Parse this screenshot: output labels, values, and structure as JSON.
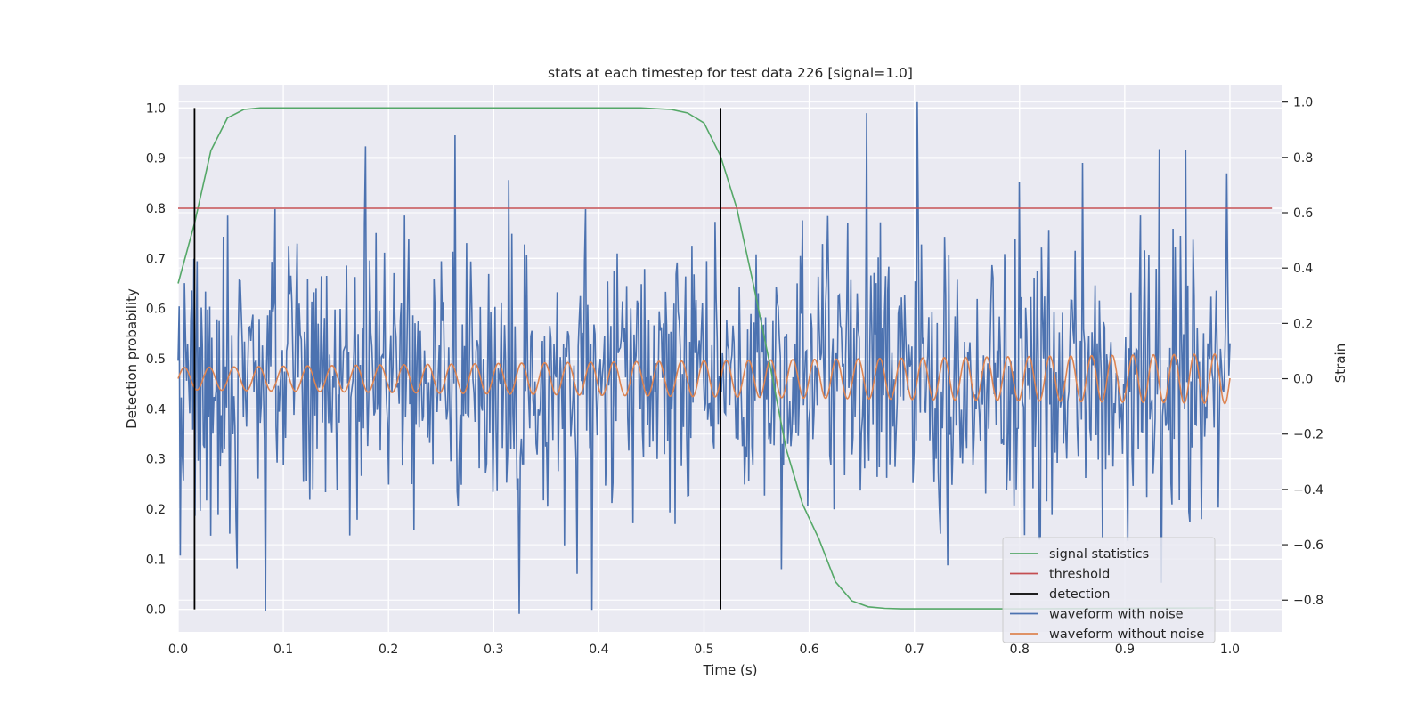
{
  "chart_data": {
    "type": "line",
    "title": "stats at each timestep for test data 226 [signal=1.0]",
    "xlabel": "Time (s)",
    "ylabel": "Detection probability",
    "ylabel_right": "Strain",
    "xlim": [
      0.0,
      1.05
    ],
    "ylim": [
      -0.045,
      1.045
    ],
    "ylim_right": [
      -0.915,
      1.06
    ],
    "xticks": [
      0.0,
      0.1,
      0.2,
      0.3,
      0.4,
      0.5,
      0.6,
      0.7,
      0.8,
      0.9,
      1.0
    ],
    "yticks": [
      0.0,
      0.1,
      0.2,
      0.3,
      0.4,
      0.5,
      0.6,
      0.7,
      0.8,
      0.9,
      1.0
    ],
    "yticks_right": [
      -0.8,
      -0.6,
      -0.4,
      -0.2,
      0.0,
      0.2,
      0.4,
      0.6,
      0.8,
      1.0
    ],
    "xtick_labels": [
      "0.0",
      "0.1",
      "0.2",
      "0.3",
      "0.4",
      "0.5",
      "0.6",
      "0.7",
      "0.8",
      "0.9",
      "1.0"
    ],
    "ytick_labels": [
      "0.0",
      "0.1",
      "0.2",
      "0.3",
      "0.4",
      "0.5",
      "0.6",
      "0.7",
      "0.8",
      "0.9",
      "1.0"
    ],
    "ytick_labels_right": [
      "−0.8",
      "−0.6",
      "−0.4",
      "−0.2",
      "0.0",
      "0.2",
      "0.4",
      "0.6",
      "0.8",
      "1.0"
    ],
    "grid": true,
    "legend_position": "lower-right",
    "series": [
      {
        "name": "signal statistics",
        "axis": "left",
        "color": "#55a868",
        "x": [
          0.0,
          0.0156,
          0.0312,
          0.0468,
          0.0625,
          0.0781,
          0.1,
          0.2,
          0.3,
          0.4,
          0.44,
          0.4688,
          0.4844,
          0.5,
          0.5156,
          0.5312,
          0.5468,
          0.5625,
          0.5781,
          0.5937,
          0.6093,
          0.625,
          0.6406,
          0.6562,
          0.6718,
          0.6875,
          0.72,
          0.8,
          0.9,
          0.9844
        ],
        "y": [
          0.65,
          0.77,
          0.915,
          0.98,
          0.997,
          1.0,
          1.0,
          1.0,
          1.0,
          1.0,
          1.0,
          0.997,
          0.99,
          0.97,
          0.905,
          0.8,
          0.65,
          0.49,
          0.32,
          0.21,
          0.14,
          0.055,
          0.017,
          0.005,
          0.002,
          0.001,
          0.001,
          0.001,
          0.002,
          0.003
        ]
      },
      {
        "name": "threshold",
        "axis": "left",
        "color": "#c44e52",
        "x": [
          0.0,
          1.04
        ],
        "y": [
          0.8,
          0.8
        ]
      },
      {
        "name": "detection",
        "axis": "left",
        "color": "#000000",
        "segments": [
          {
            "x": 0.0156,
            "y": [
              0.0,
              1.0
            ]
          },
          {
            "x": 0.5156,
            "y": [
              0.0,
              1.0
            ]
          }
        ]
      },
      {
        "name": "waveform with noise",
        "axis": "right",
        "color": "#4c72b0",
        "x_start": 0.0,
        "x_end": 1.0,
        "n_points": 1000,
        "range": [
          -0.85,
          1.0
        ],
        "std": 0.25,
        "peaks": [
          {
            "x": 0.178,
            "y": 0.84
          },
          {
            "x": 0.263,
            "y": 0.88
          },
          {
            "x": 0.324,
            "y": -0.85
          },
          {
            "x": 0.083,
            "y": -0.84
          },
          {
            "x": 0.703,
            "y": 1.0
          },
          {
            "x": 0.655,
            "y": 0.96
          },
          {
            "x": 0.933,
            "y": 0.83
          },
          {
            "x": 0.86,
            "y": 0.78
          }
        ]
      },
      {
        "name": "waveform without noise",
        "axis": "right",
        "color": "#dd8452",
        "x_start": 0.0,
        "x_end": 1.0,
        "amplitude_start": 0.04,
        "amplitude_end": 0.09,
        "frequency_start_hz": 42,
        "frequency_end_hz": 52
      }
    ]
  }
}
